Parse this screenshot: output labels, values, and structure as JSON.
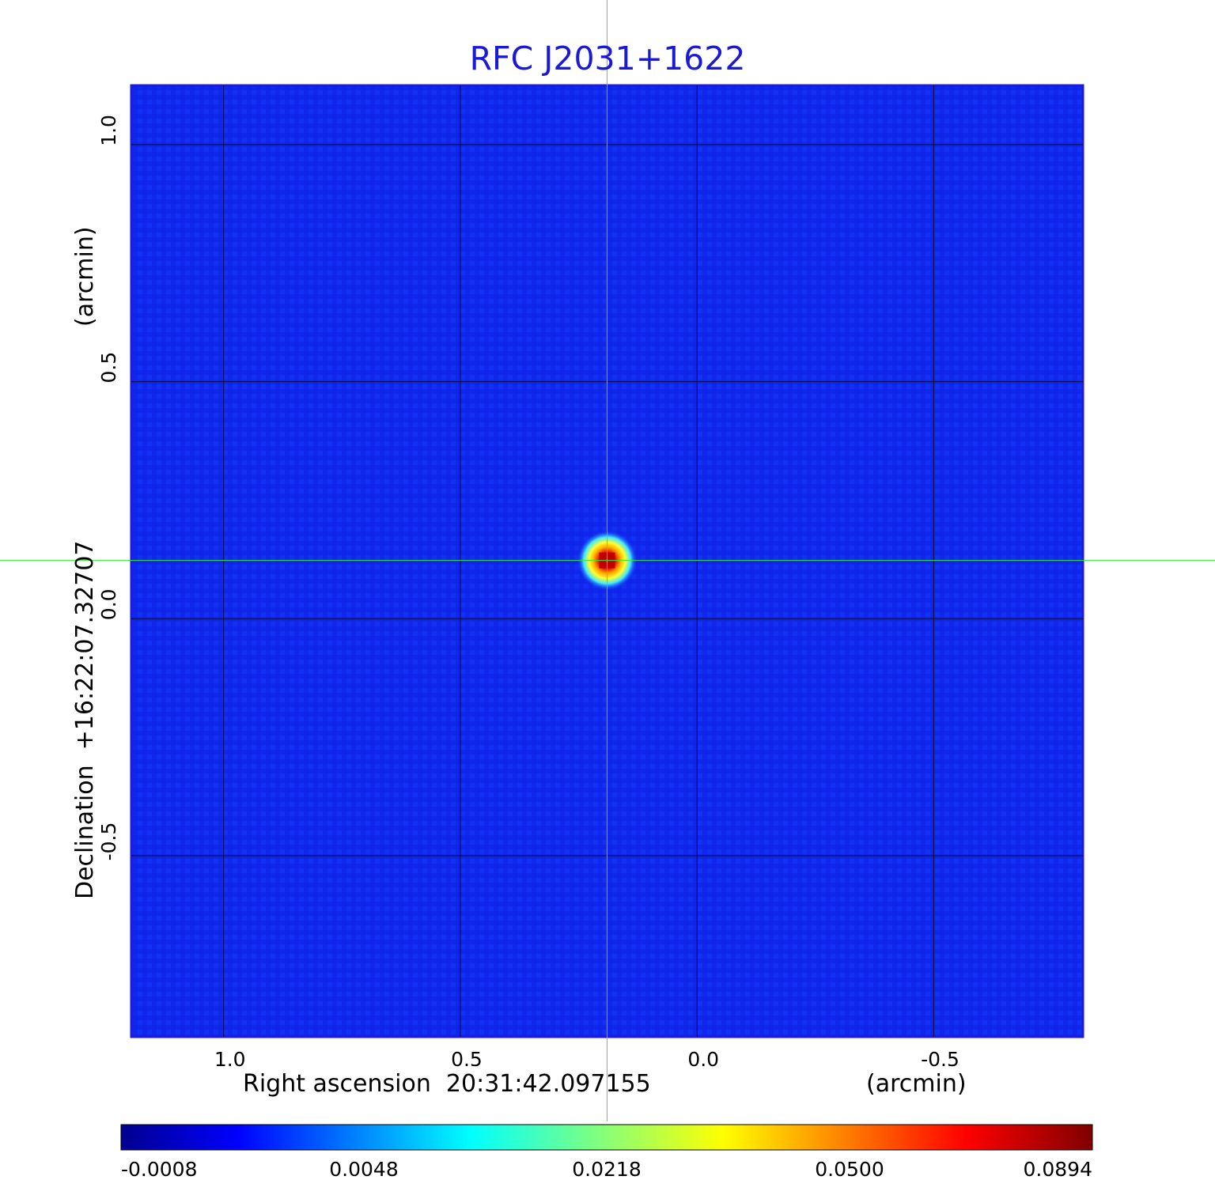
{
  "chart_data": {
    "type": "heatmap",
    "title": "RFC J2031+1622",
    "xlabel": "Right ascension  20:31:42.097155",
    "xunit": "(arcmin)",
    "ylabel": "Declination  +16:22:07.32707",
    "yunit": "(arcmin)",
    "xlim": [
      1.195,
      -0.815
    ],
    "ylim": [
      -0.882,
      1.125
    ],
    "x_ticks": [
      1.0,
      0.5,
      0.0,
      -0.5
    ],
    "x_tick_labels": [
      "1.0",
      "0.5",
      "0.0",
      "-0.5"
    ],
    "y_ticks": [
      1.0,
      0.5,
      0.0,
      -0.5
    ],
    "y_tick_labels": [
      "1.0",
      "0.5",
      "0.0",
      "-0.5"
    ],
    "grid": true,
    "crosshair": {
      "x": 0.19,
      "y": 0.123
    },
    "colormap": "jet",
    "colorbar": {
      "labels": [
        "-0.0008",
        "0.0048",
        "0.0218",
        "0.0500",
        "0.0894"
      ],
      "min": -0.0008,
      "max": 0.0894
    },
    "peak": {
      "x": 0.19,
      "y": 0.123,
      "value": 0.0894
    },
    "background_level": -0.0005,
    "colors": {
      "title": "#1a1ad6",
      "crosshair": "#33ee33",
      "grid": "#000000",
      "frame": "#1a1ae6"
    }
  }
}
